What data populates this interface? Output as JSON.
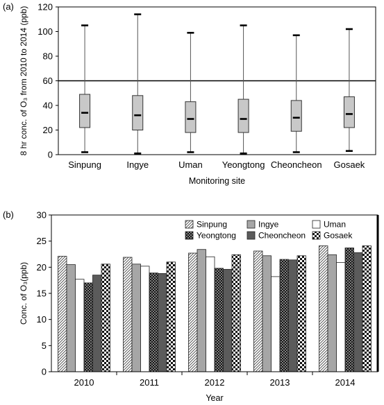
{
  "chart_data": [
    {
      "panel_label": "(a)",
      "type": "boxplot",
      "xlabel": "Monitoring site",
      "ylabel": "8 hr conc. of O₃ from 2010 to 2014 (ppb)",
      "ylim": [
        0,
        120
      ],
      "yticks": [
        0,
        20,
        40,
        60,
        80,
        100,
        120
      ],
      "reference_line": 60,
      "grid": false,
      "categories": [
        "Sinpung",
        "Ingye",
        "Uman",
        "Yeongtong",
        "Cheoncheon",
        "Gosaek"
      ],
      "box_color": "#c8c8c8",
      "boxes": [
        {
          "min": 2,
          "q1": 22,
          "median": 34,
          "q3": 49,
          "max": 105
        },
        {
          "min": 1,
          "q1": 20,
          "median": 32,
          "q3": 48,
          "max": 114
        },
        {
          "min": 2,
          "q1": 18,
          "median": 29,
          "q3": 43,
          "max": 99
        },
        {
          "min": 1,
          "q1": 18,
          "median": 29,
          "q3": 45,
          "max": 105
        },
        {
          "min": 2,
          "q1": 19,
          "median": 30,
          "q3": 44,
          "max": 97
        },
        {
          "min": 3,
          "q1": 22,
          "median": 33,
          "q3": 47,
          "max": 102
        }
      ]
    },
    {
      "panel_label": "(b)",
      "type": "bar",
      "xlabel": "Year",
      "ylabel": "Conc. of O₃(ppb)",
      "ylim": [
        0,
        30
      ],
      "yticks": [
        0,
        5,
        10,
        15,
        20,
        25,
        30
      ],
      "grid": false,
      "legend_position": "top-right",
      "categories": [
        "2010",
        "2011",
        "2012",
        "2013",
        "2014"
      ],
      "series": [
        {
          "name": "Sinpung",
          "pattern": "hatch",
          "values": [
            22.1,
            21.9,
            22.7,
            23.1,
            24.1
          ]
        },
        {
          "name": "Ingye",
          "pattern": "gray",
          "values": [
            20.5,
            20.6,
            23.4,
            22.2,
            22.4
          ]
        },
        {
          "name": "Uman",
          "pattern": "white",
          "values": [
            17.7,
            20.2,
            22.0,
            18.2,
            20.9
          ]
        },
        {
          "name": "Yeongtong",
          "pattern": "dots",
          "values": [
            17.0,
            18.9,
            19.8,
            21.5,
            23.7
          ]
        },
        {
          "name": "Cheoncheon",
          "pattern": "darkgray",
          "values": [
            18.5,
            18.8,
            19.6,
            21.4,
            22.8
          ]
        },
        {
          "name": "Gosaek",
          "pattern": "checker",
          "values": [
            20.6,
            21.0,
            22.4,
            22.2,
            24.1
          ]
        }
      ]
    }
  ]
}
